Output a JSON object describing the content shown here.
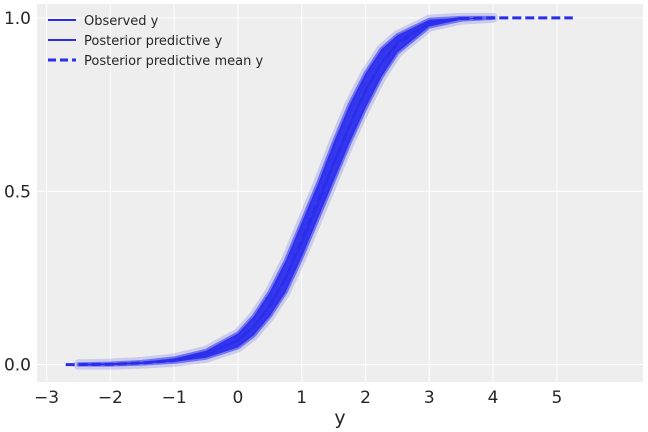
{
  "chart_data": {
    "type": "line",
    "title": "",
    "xlabel": "y",
    "ylabel": "",
    "xlim": [
      -3.15,
      6.35
    ],
    "ylim": [
      -0.05,
      1.04
    ],
    "xticks": [
      -3,
      -2,
      -1,
      0,
      1,
      2,
      3,
      4,
      5
    ],
    "xtick_labels": [
      "−3",
      "−2",
      "−1",
      "0",
      "1",
      "2",
      "3",
      "4",
      "5"
    ],
    "yticks": [
      0.0,
      0.5,
      1.0
    ],
    "ytick_labels": [
      "0.0",
      "0.5",
      "1.0"
    ],
    "grid": true,
    "legend_position": "upper left",
    "legend": [
      {
        "label": "Observed y",
        "style": "solid",
        "color": "#2a2eec"
      },
      {
        "label": "Posterior predictive y",
        "style": "solid",
        "color": "#2a2eec"
      },
      {
        "label": "Posterior predictive mean y",
        "style": "dashed",
        "color": "#2a2eec"
      }
    ],
    "series": [
      {
        "name": "Observed y",
        "style": "solid",
        "x": [
          -2.5,
          -2.0,
          -1.5,
          -1.0,
          -0.5,
          0.0,
          0.25,
          0.5,
          0.75,
          1.0,
          1.25,
          1.5,
          1.75,
          2.0,
          2.25,
          2.5,
          3.0,
          3.5
        ],
        "y": [
          0.0,
          0.001,
          0.005,
          0.012,
          0.03,
          0.07,
          0.11,
          0.17,
          0.25,
          0.35,
          0.46,
          0.58,
          0.69,
          0.79,
          0.87,
          0.93,
          0.985,
          1.0
        ]
      },
      {
        "name": "Posterior predictive y",
        "style": "band",
        "x": [
          -2.5,
          -2.0,
          -1.5,
          -1.0,
          -0.5,
          0.0,
          0.25,
          0.5,
          0.75,
          1.0,
          1.25,
          1.5,
          1.75,
          2.0,
          2.25,
          2.5,
          3.0,
          3.5,
          4.0
        ],
        "y_lower": [
          0.0,
          0.0,
          0.003,
          0.008,
          0.02,
          0.05,
          0.085,
          0.14,
          0.21,
          0.31,
          0.42,
          0.53,
          0.64,
          0.74,
          0.83,
          0.9,
          0.975,
          0.995,
          1.0
        ],
        "y_upper": [
          0.001,
          0.003,
          0.008,
          0.018,
          0.04,
          0.09,
          0.14,
          0.21,
          0.3,
          0.41,
          0.52,
          0.64,
          0.75,
          0.84,
          0.91,
          0.95,
          0.995,
          1.0,
          1.0
        ]
      },
      {
        "name": "Posterior predictive mean y",
        "style": "dashed",
        "x": [
          -2.7,
          -2.0,
          -1.5,
          -1.0,
          -0.5,
          0.0,
          0.25,
          0.5,
          0.75,
          1.0,
          1.25,
          1.5,
          1.75,
          2.0,
          2.25,
          2.5,
          3.0,
          3.5,
          4.0,
          5.25
        ],
        "y": [
          0.0,
          0.001,
          0.005,
          0.012,
          0.03,
          0.07,
          0.11,
          0.17,
          0.25,
          0.36,
          0.47,
          0.58,
          0.69,
          0.79,
          0.87,
          0.925,
          0.985,
          0.998,
          1.0,
          1.0
        ]
      }
    ]
  },
  "colors": {
    "plot_background": "#eeeeee",
    "grid": "#ffffff",
    "series": "#2a2eec",
    "band_fill": "#2a2eec",
    "text": "#262626"
  }
}
